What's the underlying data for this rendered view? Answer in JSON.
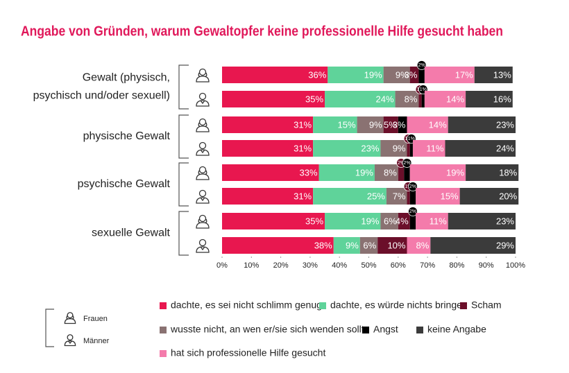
{
  "chart_data": {
    "type": "stacked-bar-horizontal",
    "title": "Angabe von Gründen, warum Gewaltopfer keine professionelle Hilfe gesucht haben",
    "groups": [
      [
        "Gewalt (physisch,",
        "psychisch und/oder sexuell)"
      ],
      [
        "physische Gewalt"
      ],
      [
        "psychische Gewalt"
      ],
      [
        "sexuelle Gewalt"
      ]
    ],
    "genders": [
      "Frauen",
      "Männer"
    ],
    "series": [
      {
        "name": "dachte, es sei nicht schlimm genug",
        "color": "#e8174f",
        "values": [
          36,
          35,
          31,
          31,
          33,
          31,
          35,
          38
        ],
        "value_labels": [
          "36%",
          "35%",
          "31%",
          "31%",
          "33%",
          "31%",
          "35%",
          "38%"
        ]
      },
      {
        "name": "dachte, es würde nichts bringen",
        "color": "#5fd39a",
        "values": [
          19,
          24,
          15,
          23,
          19,
          25,
          19,
          9
        ],
        "value_labels": [
          "19%",
          "24%",
          "15%",
          "23%",
          "19%",
          "25%",
          "19%",
          "9%"
        ]
      },
      {
        "name": "wusste nicht, an wen er/sie sich wenden sollte",
        "color": "#8a7272",
        "values": [
          9,
          8,
          9,
          9,
          8,
          7,
          6,
          6
        ],
        "value_labels": [
          "9%",
          "8%",
          "9%",
          "9%",
          "8%",
          "7%",
          "6%",
          "6%"
        ]
      },
      {
        "name": "Scham",
        "color": "#6b0f2a",
        "values": [
          3,
          1,
          5,
          1,
          2,
          1,
          4,
          10
        ],
        "value_labels": [
          "3%",
          "1%",
          "5%",
          "1%",
          "2%",
          "1%",
          "4%",
          "10%"
        ]
      },
      {
        "name": "Angst",
        "color": "#000000",
        "values": [
          2,
          1,
          3,
          1,
          2,
          2,
          2,
          null
        ],
        "value_labels": [
          "2%",
          "1%",
          "3%",
          "1%",
          "2%",
          "2%",
          "2%",
          null
        ]
      },
      {
        "name": "hat sich professionelle Hilfe gesucht",
        "color": "#f47bab",
        "values": [
          17,
          14,
          14,
          11,
          19,
          15,
          11,
          8
        ],
        "value_labels": [
          "17%",
          "14%",
          "14%",
          "11%",
          "19%",
          "15%",
          "11%",
          "8%"
        ]
      },
      {
        "name": "keine Angabe",
        "color": "#3b3b3b",
        "values": [
          13,
          16,
          23,
          24,
          18,
          20,
          23,
          29
        ],
        "value_labels": [
          "13%",
          "16%",
          "23%",
          "24%",
          "18%",
          "20%",
          "23%",
          "29%"
        ]
      }
    ],
    "xlim": [
      0,
      100
    ],
    "xticks": [
      {
        "value": 0,
        "label": "0%"
      },
      {
        "value": 10,
        "label": "10%"
      },
      {
        "value": 20,
        "label": "20%"
      },
      {
        "value": 30,
        "label": "30%"
      },
      {
        "value": 40,
        "label": "40%"
      },
      {
        "value": 50,
        "label": "50%"
      },
      {
        "value": 60,
        "label": "60%"
      },
      {
        "value": 70,
        "label": "70%"
      },
      {
        "value": 80,
        "label": "80%"
      },
      {
        "value": 90,
        "label": "90%"
      },
      {
        "value": 100,
        "label": "100%"
      }
    ]
  }
}
